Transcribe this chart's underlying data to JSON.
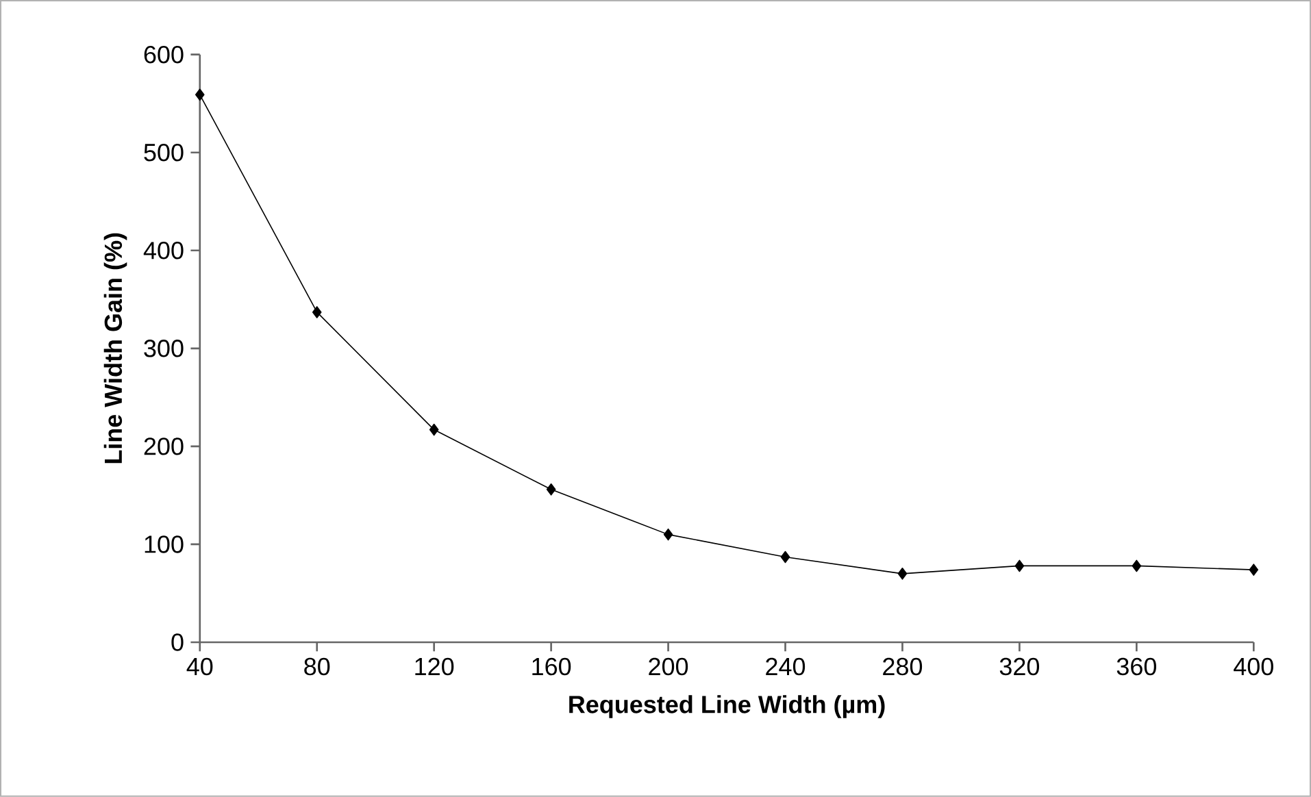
{
  "chart_data": {
    "type": "line",
    "xlabel": "Requested Line Width (µm)",
    "ylabel": "Line Width Gain (%)",
    "x": [
      40,
      80,
      120,
      160,
      200,
      240,
      280,
      320,
      360,
      400
    ],
    "series": [
      {
        "color": "#000000",
        "values": [
          559,
          337,
          217,
          156,
          110,
          87,
          70,
          78,
          78,
          74
        ]
      }
    ],
    "xlim": [
      40,
      400
    ],
    "xticks": [
      40,
      80,
      120,
      160,
      200,
      240,
      280,
      320,
      360,
      400
    ],
    "ylim": [
      0,
      600
    ],
    "yticks": [
      0,
      100,
      200,
      300,
      400,
      500,
      600
    ],
    "grid": false,
    "marker": "diamond",
    "line_style": "solid"
  }
}
